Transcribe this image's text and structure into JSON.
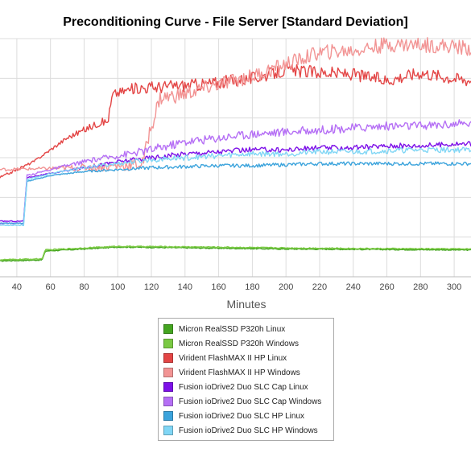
{
  "chart_data": {
    "type": "line",
    "title": "Preconditioning Curve - File Server [Standard Deviation]",
    "xlabel": "Minutes",
    "ylabel": "",
    "xlim": [
      30,
      310
    ],
    "ylim": [
      0,
      120
    ],
    "x_ticks": [
      "40",
      "60",
      "80",
      "100",
      "120",
      "140",
      "160",
      "180",
      "200",
      "220",
      "240",
      "260",
      "280",
      "300"
    ],
    "grid": true,
    "legend_position": "bottom-center",
    "series": [
      {
        "name": "Micron RealSSD P320h Linux",
        "color": "#44a520",
        "points": [
          [
            30,
            8
          ],
          [
            55,
            8.5
          ],
          [
            57,
            13
          ],
          [
            80,
            14
          ],
          [
            100,
            15
          ],
          [
            150,
            14.5
          ],
          [
            200,
            14
          ],
          [
            250,
            13.8
          ],
          [
            310,
            13.5
          ]
        ]
      },
      {
        "name": "Micron RealSSD P320h Windows",
        "color": "#7ac943",
        "points": [
          [
            30,
            8.5
          ],
          [
            55,
            9
          ],
          [
            57,
            13.5
          ],
          [
            80,
            14.5
          ],
          [
            100,
            15.3
          ],
          [
            150,
            15
          ],
          [
            200,
            14.5
          ],
          [
            250,
            14.2
          ],
          [
            310,
            14
          ]
        ]
      },
      {
        "name": "Virident FlashMAX II HP Linux",
        "color": "#e34545",
        "points": [
          [
            30,
            50
          ],
          [
            50,
            58
          ],
          [
            70,
            70
          ],
          [
            90,
            78
          ],
          [
            94,
            78
          ],
          [
            97,
            92
          ],
          [
            110,
            95
          ],
          [
            130,
            96
          ],
          [
            150,
            97
          ],
          [
            180,
            100
          ],
          [
            200,
            104
          ],
          [
            240,
            102
          ],
          [
            260,
            99
          ],
          [
            280,
            103
          ],
          [
            300,
            100
          ],
          [
            310,
            99
          ]
        ]
      },
      {
        "name": "Virident FlashMAX II HP Windows",
        "color": "#f29494",
        "points": [
          [
            30,
            54
          ],
          [
            80,
            55
          ],
          [
            100,
            56
          ],
          [
            115,
            57
          ],
          [
            118,
            70
          ],
          [
            125,
            90
          ],
          [
            140,
            92
          ],
          [
            160,
            97
          ],
          [
            180,
            101
          ],
          [
            200,
            107
          ],
          [
            220,
            113
          ],
          [
            240,
            114
          ],
          [
            260,
            117
          ],
          [
            280,
            117
          ],
          [
            300,
            116
          ],
          [
            310,
            115
          ]
        ]
      },
      {
        "name": "Fusion ioDrive2 Duo SLC Cap Linux",
        "color": "#7d10e8",
        "points": [
          [
            30,
            28
          ],
          [
            44,
            28
          ],
          [
            46,
            50
          ],
          [
            60,
            52
          ],
          [
            80,
            55
          ],
          [
            100,
            58
          ],
          [
            120,
            60
          ],
          [
            140,
            62
          ],
          [
            160,
            63
          ],
          [
            180,
            64
          ],
          [
            200,
            64
          ],
          [
            220,
            65
          ],
          [
            240,
            65
          ],
          [
            260,
            66
          ],
          [
            280,
            66
          ],
          [
            300,
            67
          ],
          [
            310,
            67
          ]
        ]
      },
      {
        "name": "Fusion ioDrive2 Duo SLC Cap Windows",
        "color": "#b56ff5",
        "points": [
          [
            30,
            27
          ],
          [
            44,
            27
          ],
          [
            46,
            51
          ],
          [
            60,
            54
          ],
          [
            80,
            58
          ],
          [
            100,
            61
          ],
          [
            120,
            64
          ],
          [
            140,
            68
          ],
          [
            160,
            70
          ],
          [
            180,
            72
          ],
          [
            200,
            73
          ],
          [
            220,
            74
          ],
          [
            240,
            75
          ],
          [
            260,
            76
          ],
          [
            280,
            76
          ],
          [
            300,
            77
          ],
          [
            310,
            77
          ]
        ]
      },
      {
        "name": "Fusion ioDrive2 Duo SLC HP Linux",
        "color": "#3ba3dc",
        "points": [
          [
            30,
            27
          ],
          [
            44,
            27
          ],
          [
            46,
            48
          ],
          [
            60,
            51
          ],
          [
            80,
            53
          ],
          [
            100,
            54
          ],
          [
            120,
            55
          ],
          [
            140,
            55.5
          ],
          [
            160,
            56
          ],
          [
            180,
            56
          ],
          [
            200,
            56.5
          ],
          [
            220,
            57
          ],
          [
            240,
            57
          ],
          [
            260,
            57
          ],
          [
            280,
            57
          ],
          [
            300,
            57
          ],
          [
            310,
            57
          ]
        ]
      },
      {
        "name": "Fusion ioDrive2 Duo SLC HP Windows",
        "color": "#80d6f5",
        "points": [
          [
            30,
            26
          ],
          [
            44,
            26
          ],
          [
            46,
            49
          ],
          [
            60,
            52
          ],
          [
            80,
            55
          ],
          [
            100,
            57
          ],
          [
            120,
            59
          ],
          [
            140,
            60
          ],
          [
            160,
            61
          ],
          [
            180,
            62
          ],
          [
            200,
            62
          ],
          [
            220,
            63
          ],
          [
            240,
            63
          ],
          [
            260,
            63.5
          ],
          [
            280,
            64
          ],
          [
            300,
            64
          ],
          [
            310,
            64
          ]
        ]
      }
    ]
  }
}
